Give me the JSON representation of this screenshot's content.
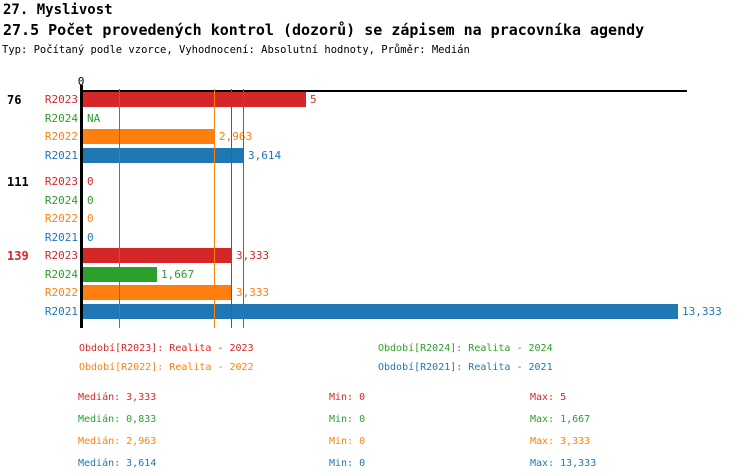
{
  "header": {
    "title": "27. Myslivost",
    "subtitle": "27.5 Počet provedených kontrol (dozorů) se zápisem na pracovníka agendy",
    "meta": "Typ: Počítaný podle vzorce, Vyhodnocení: Absolutní hodnoty, Průměr: Medián"
  },
  "colors": {
    "R2023": "#d62728",
    "R2024": "#2ca02c",
    "R2022": "#ff7f0e",
    "R2021": "#1f77b4",
    "axis": "#000000",
    "highlight_group_label": "#d62728",
    "normal_group_label": "#000000"
  },
  "chart_data": {
    "type": "bar",
    "orientation": "horizontal",
    "x_axis": {
      "zero_label": "0",
      "xlim": [
        0,
        13.5
      ],
      "grid": false
    },
    "series_order": [
      "R2023",
      "R2024",
      "R2022",
      "R2021"
    ],
    "groups": [
      {
        "label": "76",
        "highlight": false,
        "bars": [
          {
            "series": "R2023",
            "value": 5,
            "label": "5"
          },
          {
            "series": "R2024",
            "value": 0,
            "label": "NA"
          },
          {
            "series": "R2022",
            "value": 2.963,
            "label": "2,963"
          },
          {
            "series": "R2021",
            "value": 3.614,
            "label": "3,614"
          }
        ]
      },
      {
        "label": "111",
        "highlight": false,
        "bars": [
          {
            "series": "R2023",
            "value": 0,
            "label": "0"
          },
          {
            "series": "R2024",
            "value": 0,
            "label": "0"
          },
          {
            "series": "R2022",
            "value": 0,
            "label": "0"
          },
          {
            "series": "R2021",
            "value": 0,
            "label": "0"
          }
        ]
      },
      {
        "label": "139",
        "highlight": true,
        "bars": [
          {
            "series": "R2023",
            "value": 3.333,
            "label": "3,333"
          },
          {
            "series": "R2024",
            "value": 1.667,
            "label": "1,667"
          },
          {
            "series": "R2022",
            "value": 3.333,
            "label": "3,333"
          },
          {
            "series": "R2021",
            "value": 13.333,
            "label": "13,333"
          }
        ]
      }
    ],
    "median_lines": [
      {
        "series": "R2023",
        "value": 3.333
      },
      {
        "series": "R2024",
        "value": 0.833
      },
      {
        "series": "R2022",
        "value": 2.963
      },
      {
        "series": "R2021",
        "value": 3.614
      }
    ]
  },
  "legend": {
    "items": [
      {
        "series": "R2023",
        "text": "Období[R2023]: Realita - 2023"
      },
      {
        "series": "R2024",
        "text": "Období[R2024]: Realita - 2024"
      },
      {
        "series": "R2022",
        "text": "Období[R2022]: Realita - 2022"
      },
      {
        "series": "R2021",
        "text": "Období[R2021]: Realita - 2021"
      }
    ]
  },
  "stats": {
    "rows": [
      {
        "series": "R2023",
        "median": "Medián: 3,333",
        "min": "Min: 0",
        "max": "Max: 5"
      },
      {
        "series": "R2024",
        "median": "Medián: 0,833",
        "min": "Min: 0",
        "max": "Max: 1,667"
      },
      {
        "series": "R2022",
        "median": "Medián: 2,963",
        "min": "Min: 0",
        "max": "Max: 3,333"
      },
      {
        "series": "R2021",
        "median": "Medián: 3,614",
        "min": "Min: 0",
        "max": "Max: 13,333"
      }
    ]
  }
}
